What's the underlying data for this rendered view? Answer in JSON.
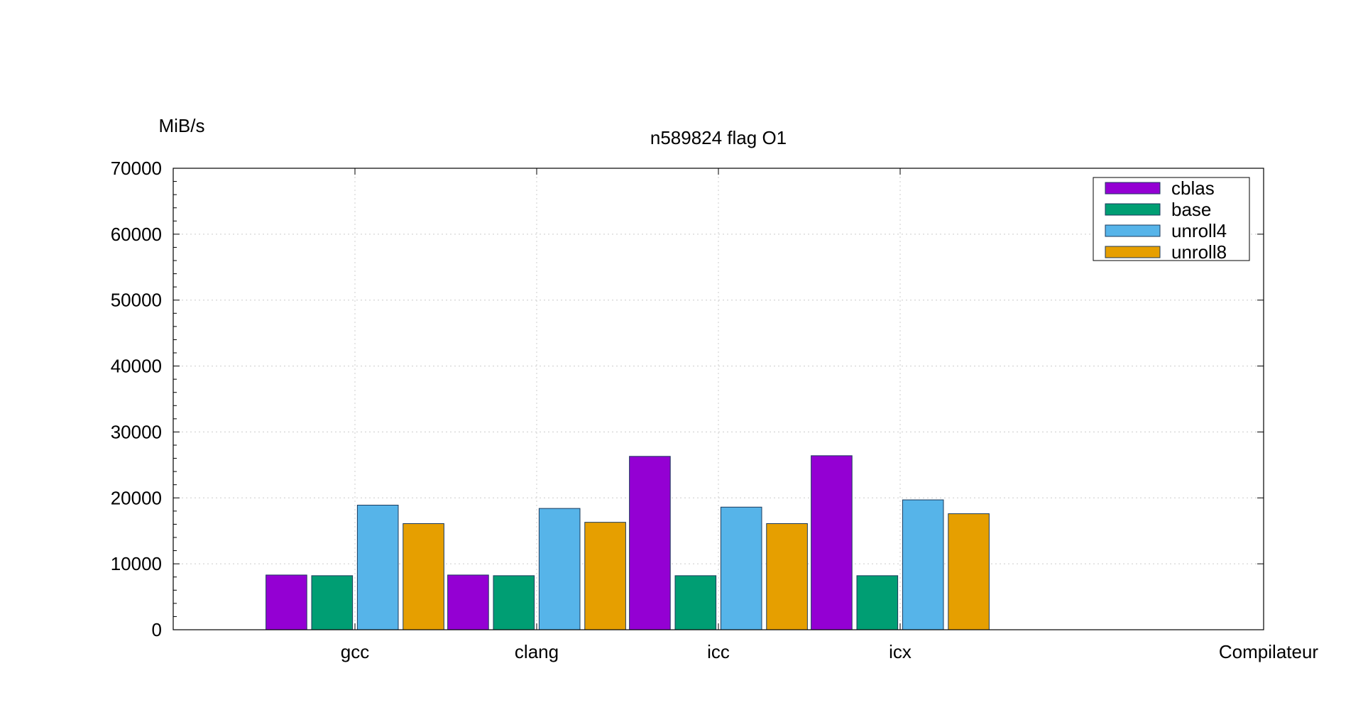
{
  "chart_data": {
    "type": "bar",
    "title": "n589824 flag O1",
    "xlabel": "Compilateur",
    "ylabel": "MiB/s",
    "categories": [
      "gcc",
      "clang",
      "icc",
      "icx"
    ],
    "ylim": [
      0,
      70000
    ],
    "yticks": [
      0,
      10000,
      20000,
      30000,
      40000,
      50000,
      60000,
      70000
    ],
    "grid": true,
    "legend_position": "top-right",
    "series": [
      {
        "name": "cblas",
        "color": "#9400d3",
        "values": [
          8300,
          8300,
          26300,
          26400
        ]
      },
      {
        "name": "base",
        "color": "#009e73",
        "values": [
          8200,
          8200,
          8200,
          8200
        ]
      },
      {
        "name": "unroll4",
        "color": "#56b4e9",
        "values": [
          18900,
          18400,
          18600,
          19700
        ]
      },
      {
        "name": "unroll8",
        "color": "#e69f00",
        "values": [
          16100,
          16300,
          16100,
          17600
        ]
      }
    ]
  }
}
